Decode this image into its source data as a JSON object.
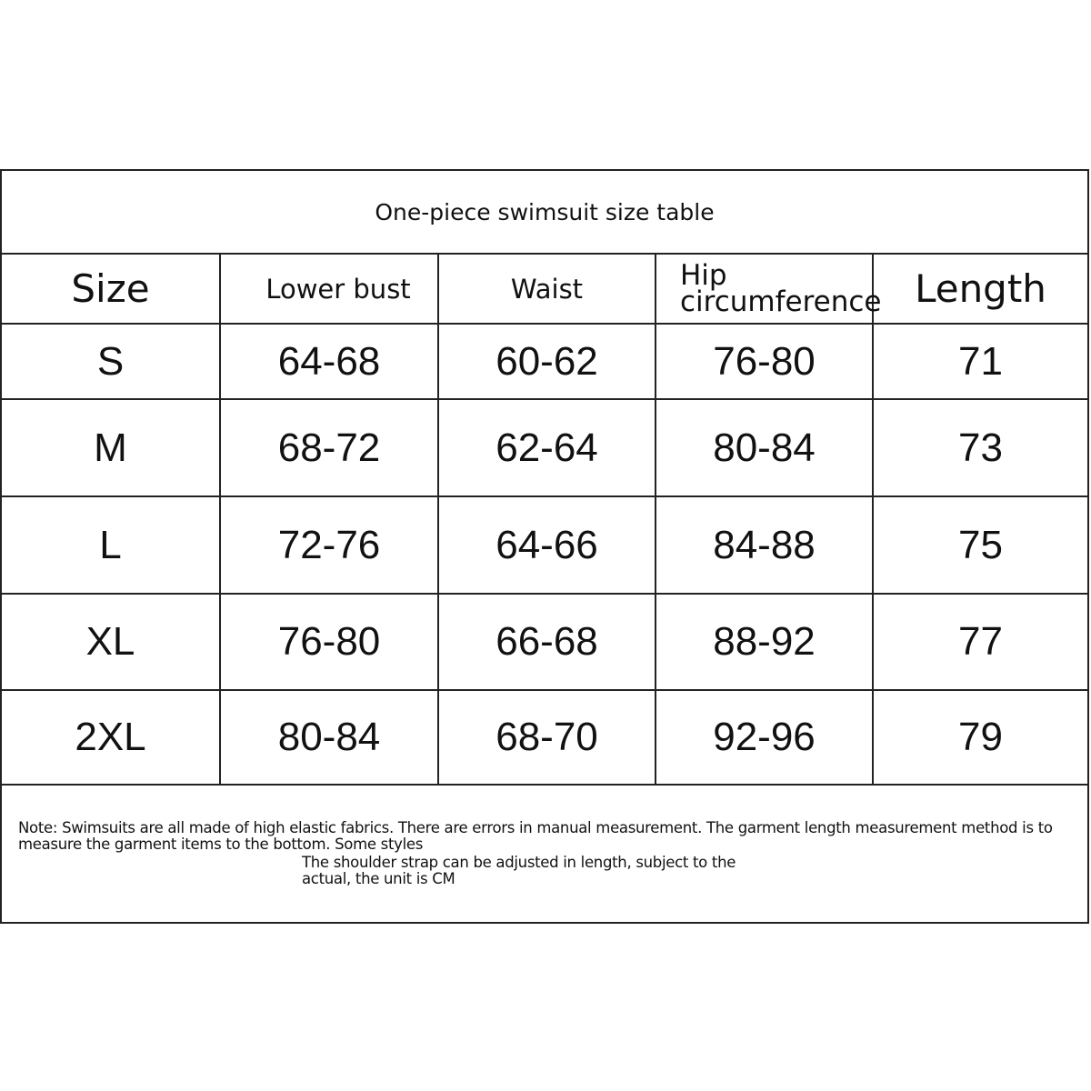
{
  "title": "One-piece swimsuit size table",
  "headers": [
    "Size",
    "Lower bust",
    "Waist",
    "Hip circumference",
    "Length"
  ],
  "header_hip_lines": [
    "Hip",
    "circumference"
  ],
  "rows": [
    [
      "S",
      "64-68",
      "60-62",
      "76-80",
      "71"
    ],
    [
      "M",
      "68-72",
      "62-64",
      "80-84",
      "73"
    ],
    [
      "L",
      "72-76",
      "64-66",
      "84-88",
      "75"
    ],
    [
      "XL",
      "76-80",
      "66-68",
      "88-92",
      "77"
    ],
    [
      "2XL",
      "80-84",
      "68-70",
      "92-96",
      "79"
    ]
  ],
  "note": {
    "line1": "Note: Swimsuits are all made of high elastic fabrics. There are errors in manual measurement. The garment length measurement method is to measure the garment items to the bottom. Some styles",
    "line2": "The shoulder strap can be adjusted in length, subject to the actual, the unit is CM"
  }
}
